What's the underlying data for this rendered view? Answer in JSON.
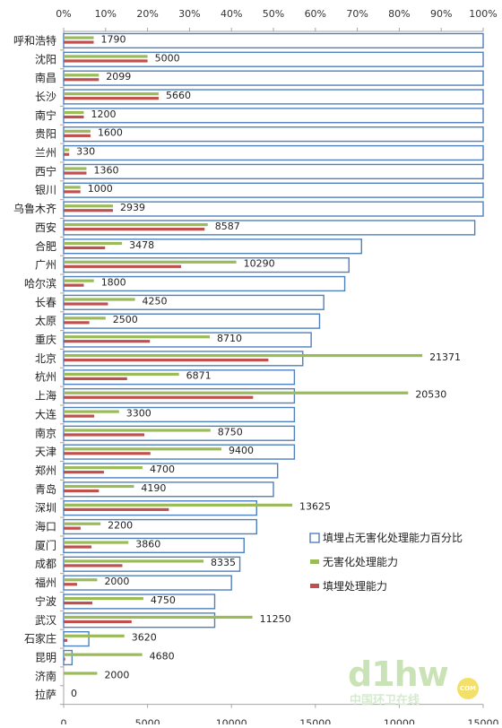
{
  "chart_data": {
    "type": "bar",
    "orientation": "horizontal",
    "categories": [
      "呼和浩特",
      "沈阳",
      "南昌",
      "长沙",
      "南宁",
      "贵阳",
      "兰州",
      "西宁",
      "银川",
      "乌鲁木齐",
      "西安",
      "合肥",
      "广州",
      "哈尔滨",
      "长春",
      "太原",
      "重庆",
      "北京",
      "杭州",
      "上海",
      "大连",
      "南京",
      "天津",
      "郑州",
      "青岛",
      "深圳",
      "海口",
      "厦门",
      "成都",
      "福州",
      "宁波",
      "武汉",
      "石家庄",
      "昆明",
      "济南",
      "拉萨"
    ],
    "series": [
      {
        "name": "填埋占无害化处理能力百分比",
        "axis": "top",
        "color": "#4f81bd",
        "values": [
          100,
          100,
          100,
          100,
          100,
          100,
          100,
          100,
          100,
          100,
          98,
          71,
          68,
          67,
          62,
          61,
          59,
          57,
          55,
          55,
          55,
          55,
          55,
          51,
          50,
          46,
          46,
          43,
          42,
          40,
          36,
          36,
          6,
          2,
          0,
          0
        ]
      },
      {
        "name": "无害化处理能力",
        "axis": "bottom",
        "color": "#9bbb59",
        "values": [
          1790,
          5000,
          2099,
          5660,
          1200,
          1600,
          330,
          1360,
          1000,
          2939,
          8587,
          3478,
          10290,
          1800,
          4250,
          2500,
          8710,
          21371,
          6871,
          20530,
          3300,
          8750,
          9400,
          4700,
          4190,
          13625,
          2200,
          3860,
          8335,
          2000,
          4750,
          11250,
          3620,
          4680,
          2000,
          0
        ]
      },
      {
        "name": "填埋处理能力",
        "axis": "bottom",
        "color": "#c0504d",
        "values": [
          1790,
          5000,
          2099,
          5660,
          1200,
          1600,
          330,
          1360,
          1000,
          2939,
          8400,
          2470,
          7000,
          1200,
          2640,
          1530,
          5140,
          12200,
          3780,
          11290,
          1820,
          4810,
          5170,
          2400,
          2100,
          6270,
          1010,
          1660,
          3500,
          800,
          1710,
          4050,
          220,
          90,
          0,
          0
        ]
      }
    ],
    "data_labels": [
      "1790",
      "5000",
      "2099",
      "5660",
      "1200",
      "1600",
      "330",
      "1360",
      "1000",
      "2939",
      "8587",
      "3478",
      "10290",
      "1800",
      "4250",
      "2500",
      "8710",
      "21371",
      "6871",
      "20530",
      "3300",
      "8750",
      "9400",
      "4700",
      "4190",
      "13625",
      "2200",
      "3860",
      "8335",
      "2000",
      "4750",
      "11250",
      "3620",
      "4680",
      "2000",
      "0"
    ],
    "top_axis": {
      "ticks": [
        "0%",
        "10%",
        "20%",
        "30%",
        "40%",
        "50%",
        "60%",
        "70%",
        "80%",
        "90%",
        "100%"
      ],
      "range": [
        0,
        100
      ]
    },
    "bottom_axis": {
      "ticks": [
        "0",
        "5000",
        "10000",
        "15000",
        "10000",
        "15000"
      ],
      "range": [
        0,
        25000
      ]
    },
    "legend_position": "right-lower",
    "grid": false
  },
  "watermark": {
    "logo": "d1hw",
    "subtitle": "中国环卫在线",
    "com": "COM"
  }
}
